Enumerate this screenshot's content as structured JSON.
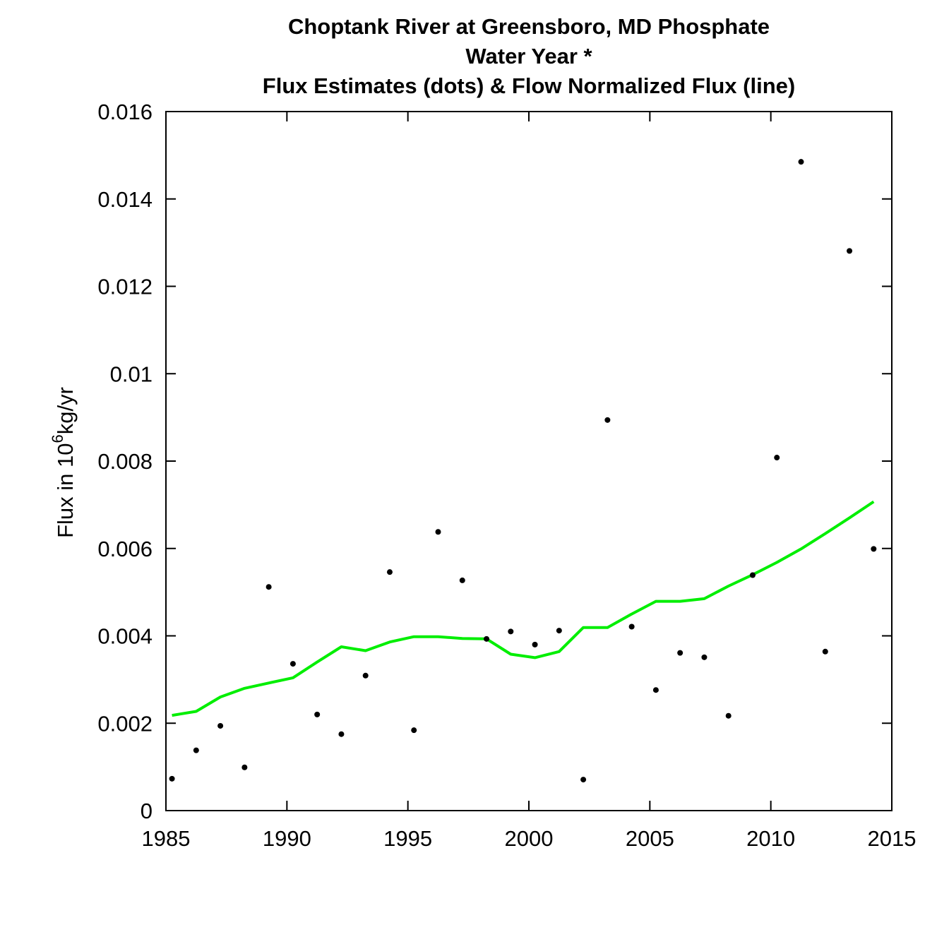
{
  "chart_data": {
    "type": "scatter",
    "title_lines": [
      "Choptank River at Greensboro, MD   Phosphate",
      "Water Year *",
      "Flux Estimates (dots) & Flow Normalized Flux (line)"
    ],
    "ylabel": {
      "prefix": "Flux in 10",
      "superscript": "6",
      "suffix": "kg/yr"
    },
    "xlim": [
      1985,
      2015
    ],
    "ylim": [
      0,
      0.016
    ],
    "x_ticks": [
      1985,
      1990,
      1995,
      2000,
      2005,
      2010,
      2015
    ],
    "x_tick_labels": [
      "1985",
      "1990",
      "1995",
      "2000",
      "2005",
      "2010",
      "2015"
    ],
    "y_ticks": [
      0,
      0.002,
      0.004,
      0.006,
      0.008,
      0.01,
      0.012,
      0.014,
      0.016
    ],
    "y_tick_labels": [
      "0",
      "0.002",
      "0.004",
      "0.006",
      "0.008",
      "0.01",
      "0.012",
      "0.014",
      "0.016"
    ],
    "grid": false,
    "series": [
      {
        "kind": "dots",
        "color": "#000000",
        "x": [
          1985.25,
          1986.25,
          1987.25,
          1988.25,
          1989.25,
          1990.25,
          1991.25,
          1992.25,
          1993.25,
          1994.25,
          1995.25,
          1996.25,
          1997.25,
          1998.25,
          1999.25,
          2000.25,
          2001.25,
          2002.25,
          2003.25,
          2004.25,
          2005.25,
          2006.25,
          2007.25,
          2008.25,
          2009.25,
          2010.25,
          2011.25,
          2012.25,
          2013.25,
          2014.25
        ],
        "y": [
          0.00073,
          0.00138,
          0.00194,
          0.00099,
          0.00512,
          0.00336,
          0.0022,
          0.00175,
          0.00309,
          0.00546,
          0.00184,
          0.00638,
          0.00527,
          0.00393,
          0.0041,
          0.0038,
          0.00412,
          0.00071,
          0.00894,
          0.00421,
          0.00276,
          0.00361,
          0.00351,
          0.00217,
          0.00539,
          0.00808,
          0.01485,
          0.00364,
          0.01281,
          0.00599
        ]
      },
      {
        "kind": "line",
        "color": "#00ee00",
        "x": [
          1985.25,
          1986.25,
          1987.25,
          1988.25,
          1989.25,
          1990.25,
          1991.25,
          1992.25,
          1993.25,
          1994.25,
          1995.25,
          1996.25,
          1997.25,
          1998.25,
          1999.25,
          2000.25,
          2001.25,
          2002.25,
          2003.25,
          2004.25,
          2005.25,
          2006.25,
          2007.25,
          2008.25,
          2009.25,
          2010.25,
          2011.25,
          2012.25,
          2013.25,
          2014.25
        ],
        "y": [
          0.00218,
          0.00227,
          0.0026,
          0.0028,
          0.00292,
          0.00304,
          0.0034,
          0.00375,
          0.00366,
          0.00386,
          0.00398,
          0.00398,
          0.00394,
          0.00393,
          0.00358,
          0.0035,
          0.00364,
          0.00419,
          0.00419,
          0.0045,
          0.00479,
          0.00479,
          0.00485,
          0.00514,
          0.0054,
          0.00568,
          0.00599,
          0.00634,
          0.0067,
          0.00707
        ]
      }
    ]
  }
}
